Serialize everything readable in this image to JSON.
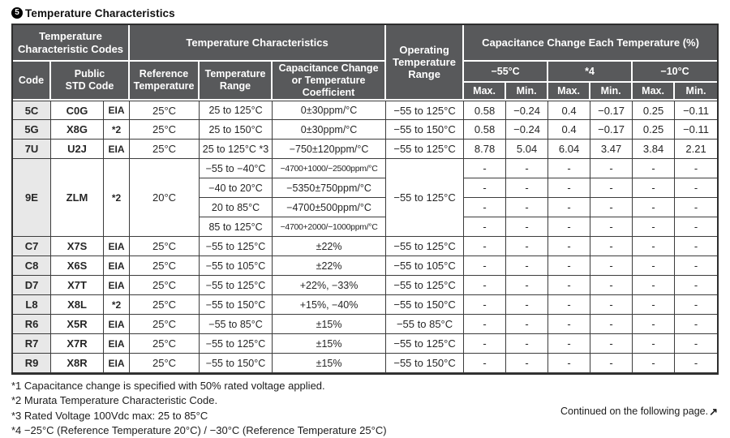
{
  "title": {
    "badge": "5",
    "text": "Temperature Characteristics"
  },
  "colors": {
    "header_bg": "#58595B",
    "code_column_bg": "#E8E8E8",
    "border_dark": "#3C3C3C",
    "header_text": "#FFFFFF"
  },
  "table": {
    "header": {
      "group_codes": "Temperature\nCharacteristic Codes",
      "group_characteristics": "Temperature Characteristics",
      "operating": "Operating\nTemperature\nRange",
      "group_cap_change": "Capacitance Change Each Temperature (%)",
      "code": "Code",
      "public_std": "Public\nSTD Code",
      "ref_temp": "Reference\nTemperature",
      "temp_range": "Temperature\nRange",
      "cap_change": "Capacitance Change\nor Temperature\nCoefficient",
      "temp_cols": [
        "−55°C",
        "*4",
        "−10°C"
      ],
      "max_label": "Max.",
      "min_label": "Min."
    },
    "groups": [
      {
        "code": "5C",
        "std": "C0G",
        "eia": "EIA",
        "ref": "25°C",
        "op": "−55 to 125°C",
        "subrows": [
          {
            "range": "25 to 125°C",
            "coef": "0±30ppm/°C",
            "small": false,
            "vals": [
              "0.58",
              "−0.24",
              "0.4",
              "−0.17",
              "0.25",
              "−0.11"
            ]
          }
        ]
      },
      {
        "code": "5G",
        "std": "X8G",
        "eia": "*2",
        "ref": "25°C",
        "op": "−55 to 150°C",
        "subrows": [
          {
            "range": "25 to 150°C",
            "coef": "0±30ppm/°C",
            "small": false,
            "vals": [
              "0.58",
              "−0.24",
              "0.4",
              "−0.17",
              "0.25",
              "−0.11"
            ]
          }
        ]
      },
      {
        "code": "7U",
        "std": "U2J",
        "eia": "EIA",
        "ref": "25°C",
        "op": "−55 to 125°C",
        "subrows": [
          {
            "range": "25 to 125°C *3",
            "coef": "−750±120ppm/°C",
            "small": false,
            "vals": [
              "8.78",
              "5.04",
              "6.04",
              "3.47",
              "3.84",
              "2.21"
            ]
          }
        ]
      },
      {
        "code": "9E",
        "std": "ZLM",
        "eia": "*2",
        "ref": "20°C",
        "op": "−55 to 125°C",
        "subrows": [
          {
            "range": "−55 to −40°C",
            "coef": "−4700+1000/−2500ppm/°C",
            "small": true,
            "vals": [
              "-",
              "-",
              "-",
              "-",
              "-",
              "-"
            ]
          },
          {
            "range": "−40 to 20°C",
            "coef": "−5350±750ppm/°C",
            "small": false,
            "vals": [
              "-",
              "-",
              "-",
              "-",
              "-",
              "-"
            ]
          },
          {
            "range": "20 to 85°C",
            "coef": "−4700±500ppm/°C",
            "small": false,
            "vals": [
              "-",
              "-",
              "-",
              "-",
              "-",
              "-"
            ]
          },
          {
            "range": "85 to 125°C",
            "coef": "−4700+2000/−1000ppm/°C",
            "small": true,
            "vals": [
              "-",
              "-",
              "-",
              "-",
              "-",
              "-"
            ]
          }
        ]
      },
      {
        "code": "C7",
        "std": "X7S",
        "eia": "EIA",
        "ref": "25°C",
        "op": "−55 to 125°C",
        "subrows": [
          {
            "range": "−55 to 125°C",
            "coef": "±22%",
            "small": false,
            "vals": [
              "-",
              "-",
              "-",
              "-",
              "-",
              "-"
            ]
          }
        ]
      },
      {
        "code": "C8",
        "std": "X6S",
        "eia": "EIA",
        "ref": "25°C",
        "op": "−55 to 105°C",
        "subrows": [
          {
            "range": "−55 to 105°C",
            "coef": "±22%",
            "small": false,
            "vals": [
              "-",
              "-",
              "-",
              "-",
              "-",
              "-"
            ]
          }
        ]
      },
      {
        "code": "D7",
        "std": "X7T",
        "eia": "EIA",
        "ref": "25°C",
        "op": "−55 to 125°C",
        "subrows": [
          {
            "range": "−55 to 125°C",
            "coef": "+22%, −33%",
            "small": false,
            "vals": [
              "-",
              "-",
              "-",
              "-",
              "-",
              "-"
            ]
          }
        ]
      },
      {
        "code": "L8",
        "std": "X8L",
        "eia": "*2",
        "ref": "25°C",
        "op": "−55 to 150°C",
        "subrows": [
          {
            "range": "−55 to 150°C",
            "coef": "+15%, −40%",
            "small": false,
            "vals": [
              "-",
              "-",
              "-",
              "-",
              "-",
              "-"
            ]
          }
        ]
      },
      {
        "code": "R6",
        "std": "X5R",
        "eia": "EIA",
        "ref": "25°C",
        "op": "−55 to 85°C",
        "subrows": [
          {
            "range": "−55 to 85°C",
            "coef": "±15%",
            "small": false,
            "vals": [
              "-",
              "-",
              "-",
              "-",
              "-",
              "-"
            ]
          }
        ]
      },
      {
        "code": "R7",
        "std": "X7R",
        "eia": "EIA",
        "ref": "25°C",
        "op": "−55 to 125°C",
        "subrows": [
          {
            "range": "−55 to 125°C",
            "coef": "±15%",
            "small": false,
            "vals": [
              "-",
              "-",
              "-",
              "-",
              "-",
              "-"
            ]
          }
        ]
      },
      {
        "code": "R9",
        "std": "X8R",
        "eia": "EIA",
        "ref": "25°C",
        "op": "−55 to 150°C",
        "subrows": [
          {
            "range": "−55 to 150°C",
            "coef": "±15%",
            "small": false,
            "vals": [
              "-",
              "-",
              "-",
              "-",
              "-",
              "-"
            ]
          }
        ]
      }
    ]
  },
  "footnotes": [
    "*1 Capacitance change is specified with 50% rated voltage applied.",
    "*2 Murata Temperature Characteristic Code.",
    "*3 Rated Voltage 100Vdc max: 25 to 85°C",
    "*4 −25°C (Reference Temperature 20°C) / −30°C (Reference Temperature 25°C)"
  ],
  "continued": {
    "text": "Continued on the following page.",
    "arrow": "↗"
  }
}
